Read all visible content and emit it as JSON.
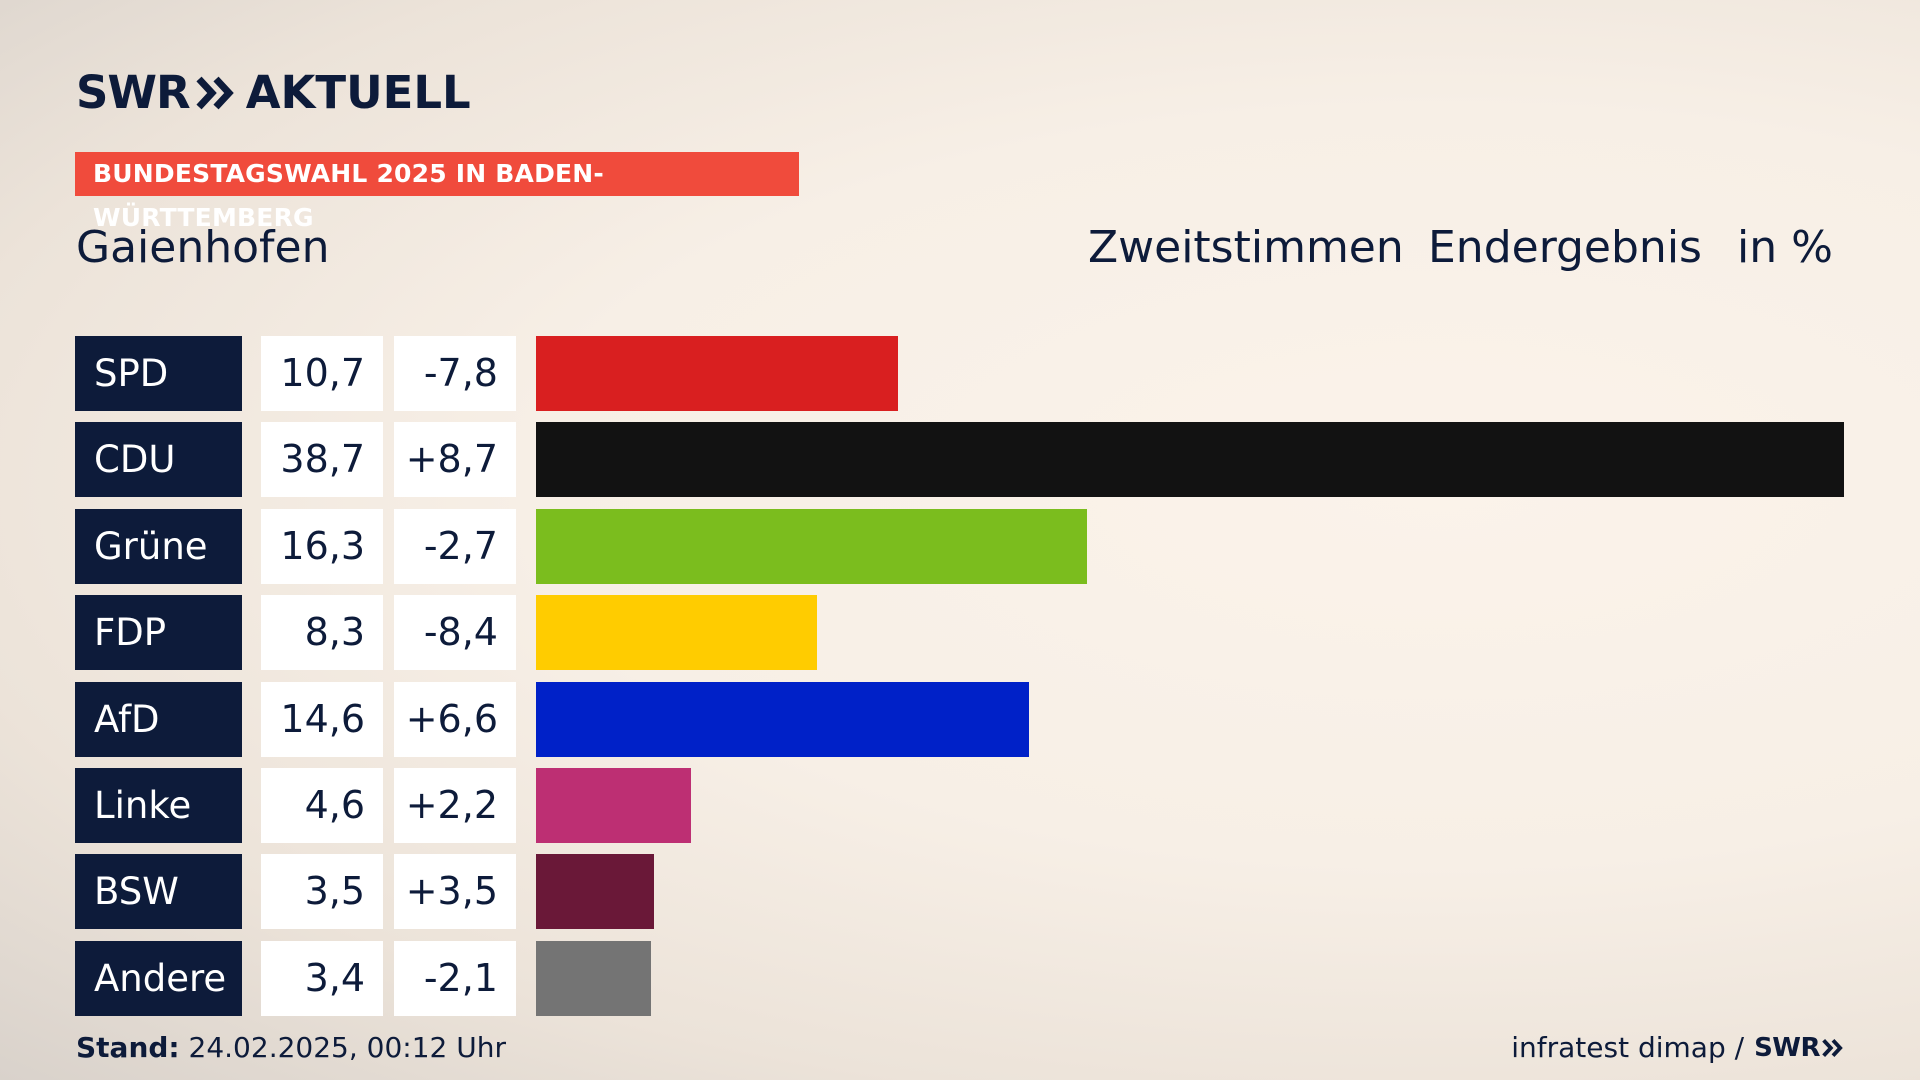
{
  "brand": {
    "logo_left": "SWR",
    "logo_right": "AKTUELL",
    "footer_brand": "SWR"
  },
  "tag": "BUNDESTAGSWAHL 2025 IN BADEN-WÜRTTEMBERG",
  "region": "Gaienhofen",
  "header": {
    "vote": "Zweitstimmen",
    "status": "Endergebnis",
    "unit": "in %"
  },
  "footer": {
    "stand_label": "Stand:",
    "stand_value": "24.02.2025, 00:12 Uhr",
    "source": "infratest dimap /"
  },
  "colors": {
    "navy": "#0d1b3a",
    "tag": "#f04b3c"
  },
  "chart_data": {
    "type": "bar",
    "orientation": "horizontal",
    "categories": [
      "SPD",
      "CDU",
      "Grüne",
      "FDP",
      "AfD",
      "Linke",
      "BSW",
      "Andere"
    ],
    "values": [
      10.7,
      38.7,
      16.3,
      8.3,
      14.6,
      4.6,
      3.5,
      3.4
    ],
    "value_labels": [
      "10,7",
      "38,7",
      "16,3",
      "8,3",
      "14,6",
      "4,6",
      "3,5",
      "3,4"
    ],
    "diff_labels": [
      "-7,8",
      "+8,7",
      "-2,7",
      "-8,4",
      "+6,6",
      "+2,2",
      "+3,5",
      "-2,1"
    ],
    "diffs": [
      -7.8,
      8.7,
      -2.7,
      -8.4,
      6.6,
      2.2,
      3.5,
      -2.1
    ],
    "colors": [
      "#d91f20",
      "#121212",
      "#7bbd1e",
      "#ffcc00",
      "#0021c8",
      "#bd2f73",
      "#6a1838",
      "#747474"
    ],
    "xlim": [
      0,
      38.7
    ]
  }
}
